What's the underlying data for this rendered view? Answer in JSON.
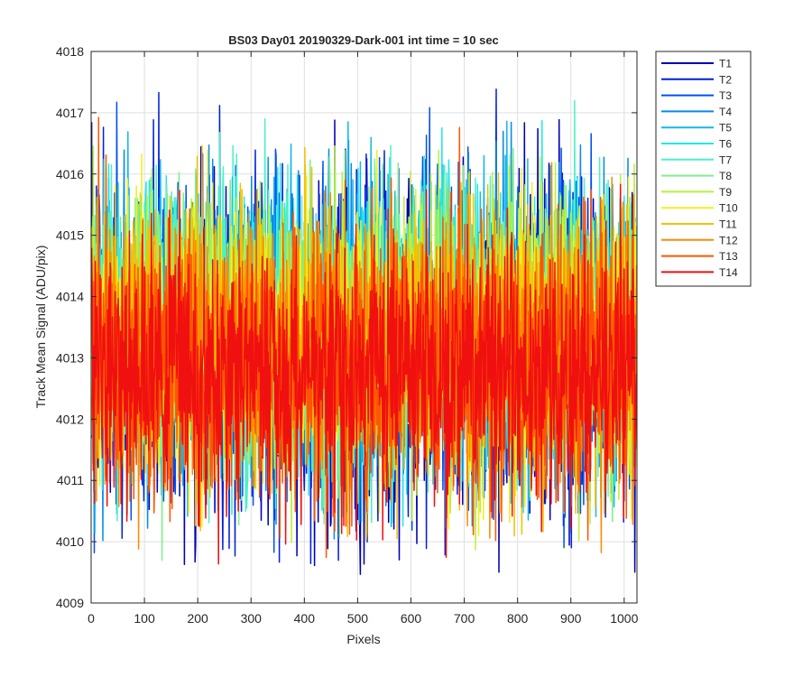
{
  "chart_data": {
    "type": "line",
    "title": "BS03 Day01 20190329-Dark-001 int time = 10 sec",
    "xlabel": "Pixels",
    "ylabel": "Track Mean Signal (ADU/pix)",
    "xlim": [
      0,
      1024
    ],
    "ylim": [
      4009,
      4018
    ],
    "xticks": [
      0,
      100,
      200,
      300,
      400,
      500,
      600,
      700,
      800,
      900,
      1000
    ],
    "yticks": [
      4009,
      4010,
      4011,
      4012,
      4013,
      4014,
      4015,
      4016,
      4017,
      4018
    ],
    "grid": true,
    "legend_position": "outside-top-right",
    "n_points": 1024,
    "series": [
      {
        "name": "T1",
        "color": "#0000b3",
        "mean": 4013.1,
        "noise_sd": 1.35,
        "min": 4009.4,
        "max": 4016.9
      },
      {
        "name": "T2",
        "color": "#0022d6",
        "mean": 4013.2,
        "noise_sd": 1.3,
        "min": 4009.6,
        "max": 4017.4
      },
      {
        "name": "T3",
        "color": "#0050f0",
        "mean": 4013.3,
        "noise_sd": 1.25,
        "min": 4009.8,
        "max": 4017.3
      },
      {
        "name": "T4",
        "color": "#0a8ae6",
        "mean": 4013.4,
        "noise_sd": 1.2,
        "min": 4010.0,
        "max": 4017.1
      },
      {
        "name": "T5",
        "color": "#16b8e8",
        "mean": 4013.5,
        "noise_sd": 1.15,
        "min": 4010.1,
        "max": 4017.0
      },
      {
        "name": "T6",
        "color": "#25e5ea",
        "mean": 4013.6,
        "noise_sd": 1.1,
        "min": 4010.2,
        "max": 4017.2
      },
      {
        "name": "T7",
        "color": "#4df0c8",
        "mean": 4013.6,
        "noise_sd": 1.1,
        "min": 4010.3,
        "max": 4017.3
      },
      {
        "name": "T8",
        "color": "#7ef08c",
        "mean": 4013.5,
        "noise_sd": 1.1,
        "min": 4009.6,
        "max": 4017.5
      },
      {
        "name": "T9",
        "color": "#b8f03c",
        "mean": 4013.4,
        "noise_sd": 1.1,
        "min": 4009.8,
        "max": 4017.5
      },
      {
        "name": "T10",
        "color": "#f0f020",
        "mean": 4013.3,
        "noise_sd": 1.1,
        "min": 4009.9,
        "max": 4017.4
      },
      {
        "name": "T11",
        "color": "#f5c000",
        "mean": 4013.2,
        "noise_sd": 1.1,
        "min": 4010.0,
        "max": 4017.2
      },
      {
        "name": "T12",
        "color": "#fa8c00",
        "mean": 4013.1,
        "noise_sd": 1.1,
        "min": 4009.8,
        "max": 4017.3
      },
      {
        "name": "T13",
        "color": "#ff5500",
        "mean": 4012.9,
        "noise_sd": 1.1,
        "min": 4009.5,
        "max": 4017.0
      },
      {
        "name": "T14",
        "color": "#f01010",
        "mean": 4012.8,
        "noise_sd": 1.05,
        "min": 4009.1,
        "max": 4016.8
      }
    ]
  }
}
